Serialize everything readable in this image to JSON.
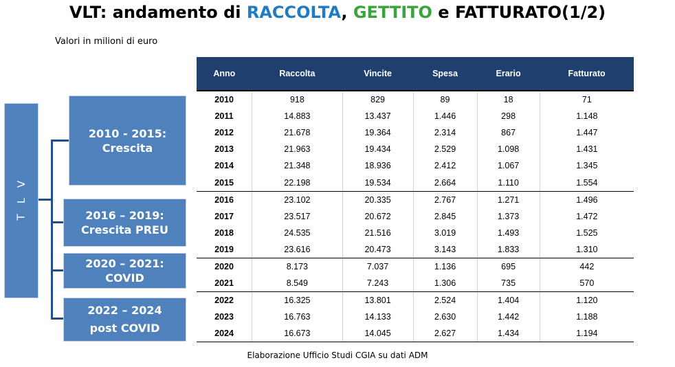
{
  "title": {
    "prefix": "VLT: andamento di ",
    "raccolta": "RACCOLTA",
    "sep1": ", ",
    "gettito": "GETTITO",
    "sep2": " e ",
    "suffix": "FATTURATO(1/2)"
  },
  "subtitle": "Valori in milioni di euro",
  "footer": "Elaborazione Ufficio Studi CGIA su dati ADM",
  "side_label": [
    "V",
    "L",
    "T"
  ],
  "periods": [
    {
      "line1": "2010 - 2015:",
      "line2": "Crescita"
    },
    {
      "line1": "2016 – 2019:",
      "line2": "Crescita PREU"
    },
    {
      "line1": "2020 – 2021:",
      "line2": "COVID"
    },
    {
      "line1": "2022 – 2024",
      "line2": "post COVID"
    }
  ],
  "table": {
    "headers": [
      "Anno",
      "Raccolta",
      "Vincite",
      "Spesa",
      "Erario",
      "Fatturato"
    ],
    "rows": [
      [
        "2010",
        "918",
        "829",
        "89",
        "18",
        "71"
      ],
      [
        "2011",
        "14.883",
        "13.437",
        "1.446",
        "298",
        "1.148"
      ],
      [
        "2012",
        "21.678",
        "19.364",
        "2.314",
        "867",
        "1.447"
      ],
      [
        "2013",
        "21.963",
        "19.434",
        "2.529",
        "1.098",
        "1.431"
      ],
      [
        "2014",
        "21.348",
        "18.936",
        "2.412",
        "1.067",
        "1.345"
      ],
      [
        "2015",
        "22.198",
        "19.534",
        "2.664",
        "1.110",
        "1.554"
      ],
      [
        "2016",
        "23.102",
        "20.335",
        "2.767",
        "1.271",
        "1.496"
      ],
      [
        "2017",
        "23.517",
        "20.672",
        "2.845",
        "1.373",
        "1.472"
      ],
      [
        "2018",
        "24.535",
        "21.516",
        "3.019",
        "1.493",
        "1.525"
      ],
      [
        "2019",
        "23.616",
        "20.473",
        "3.143",
        "1.833",
        "1.310"
      ],
      [
        "2020",
        "8.173",
        "7.037",
        "1.136",
        "695",
        "442"
      ],
      [
        "2021",
        "8.549",
        "7.243",
        "1.306",
        "735",
        "570"
      ],
      [
        "2022",
        "16.325",
        "13.801",
        "2.524",
        "1.404",
        "1.120"
      ],
      [
        "2023",
        "16.763",
        "14.133",
        "2.630",
        "1.442",
        "1.188"
      ],
      [
        "2024",
        "16.673",
        "14.045",
        "2.627",
        "1.434",
        "1.194"
      ]
    ]
  },
  "colors": {
    "raccolta": "#1f7cc1",
    "gettito": "#3aa43a",
    "header_bg": "#1f3f6e",
    "box_bg": "#4f81bd"
  }
}
